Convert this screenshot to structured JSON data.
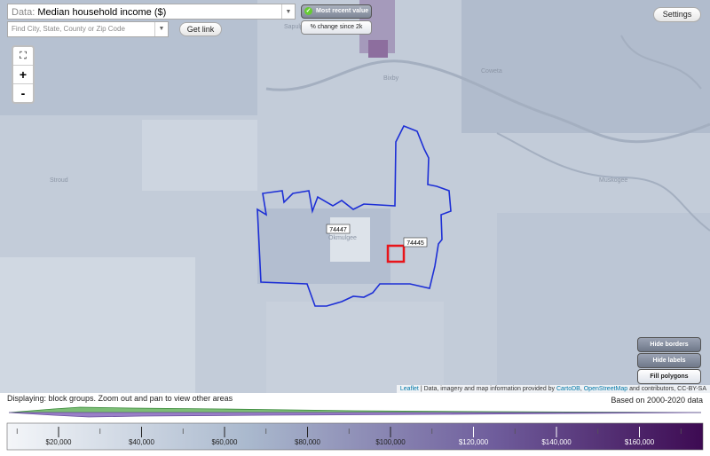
{
  "controls": {
    "data_label": "Data:",
    "data_value": "Median household income ($)",
    "search_placeholder": "Find City, State, County or Zip Code",
    "get_link": "Get link",
    "most_recent": "Most recent value",
    "percent_change": "% change since 2k",
    "settings": "Settings",
    "zoom_in": "+",
    "zoom_out": "-"
  },
  "map": {
    "places": [
      "Sapulpa",
      "Bixby",
      "Coweta",
      "Stroud",
      "Okmulgee",
      "Muskogee"
    ],
    "zip_labels": [
      "74447",
      "74445"
    ],
    "buttons": [
      "Hide borders",
      "Hide labels",
      "Fill polygons"
    ],
    "attribution": {
      "leaflet": "Leaflet",
      "text1": " | Data, imagery and map information provided by ",
      "cartodb": "CartoDB",
      "sep": ", ",
      "osm": "OpenStreetMap",
      "text2": " and contributors, CC-BY-SA"
    }
  },
  "footer": {
    "displaying": "Displaying: block groups. Zoom out and pan to view other areas",
    "based_on": "Based on 2000-2020 data",
    "legend_ticks": [
      "$20,000",
      "$40,000",
      "$60,000",
      "$80,000",
      "$100,000",
      "$120,000",
      "$140,000",
      "$160,000"
    ]
  }
}
